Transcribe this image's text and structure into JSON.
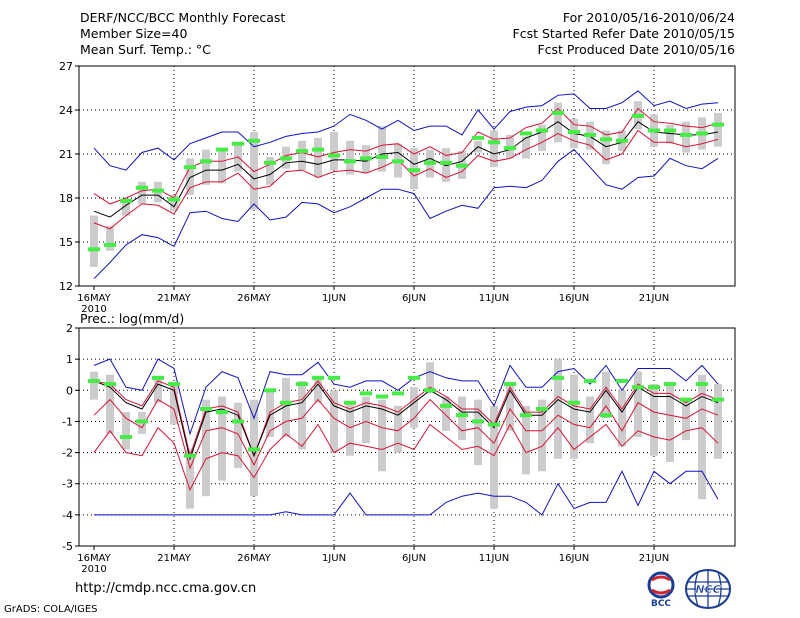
{
  "header": {
    "title": "DERF/NCC/BCC Monthly Forecast",
    "member_size": "Member Size=40",
    "variable1": "Mean Surf. Temp.: °C",
    "period": "For 2010/05/16-2010/06/24",
    "refer_date": "Fcst Started Refer Date 2010/05/15",
    "produced_date": "Fcst Produced Date 2010/05/16"
  },
  "footer": {
    "url": "http://cmdp.ncc.cma.gov.cn",
    "grads": "GrADS: COLA/IGES"
  },
  "logos": [
    {
      "name": "bcc-logo",
      "label": "BCC"
    },
    {
      "name": "ncc-logo",
      "label": "NCC"
    }
  ],
  "colors": {
    "green": "#44ee44",
    "black": "#000000",
    "red": "#dd1133",
    "blue": "#1111cc",
    "box": "#cccccc"
  },
  "chart_data": [
    {
      "type": "line",
      "title": "Mean Surf. Temp.: °C",
      "ylabel": "°C",
      "ylim": [
        12,
        27
      ],
      "yticks": [
        12,
        15,
        18,
        21,
        24,
        27
      ],
      "xtick_labels": [
        "16MAY",
        "21MAY",
        "26MAY",
        "1JUN",
        "6JUN",
        "11JUN",
        "16JUN",
        "21JUN"
      ],
      "year_label": "2010",
      "days": 40,
      "series": [
        {
          "name": "max",
          "color": "blue",
          "values": [
            21.4,
            20.2,
            19.9,
            21.1,
            21.4,
            20.6,
            21.7,
            22.1,
            22.5,
            22.5,
            21.5,
            21.8,
            22.2,
            22.4,
            22.5,
            22.9,
            23.7,
            23.3,
            22.7,
            23.3,
            22.6,
            22.9,
            22.9,
            22.3,
            24.0,
            22.7,
            23.9,
            24.2,
            24.3,
            25.0,
            25.1,
            24.1,
            24.1,
            24.5,
            25.3,
            24.3,
            24.6,
            24.1,
            24.4,
            24.5
          ]
        },
        {
          "name": "upper",
          "color": "red",
          "values": [
            18.3,
            17.6,
            18.0,
            18.5,
            18.6,
            18.0,
            20.1,
            20.5,
            20.5,
            20.8,
            19.8,
            20.3,
            20.9,
            21.1,
            20.8,
            21.1,
            21.3,
            21.2,
            21.6,
            21.7,
            21.0,
            21.5,
            20.9,
            21.1,
            22.5,
            22.0,
            22.1,
            22.8,
            23.1,
            24.1,
            23.0,
            22.9,
            22.3,
            22.5,
            24.1,
            23.2,
            23.1,
            22.9,
            22.8,
            23.1
          ]
        },
        {
          "name": "mean",
          "color": "black",
          "values": [
            17.1,
            16.7,
            17.5,
            18.2,
            18.2,
            17.4,
            19.4,
            19.9,
            19.9,
            20.3,
            19.3,
            19.6,
            20.4,
            20.5,
            20.3,
            20.6,
            20.6,
            20.5,
            21.0,
            21.1,
            20.3,
            20.7,
            20.2,
            20.5,
            21.5,
            21.0,
            21.3,
            22.1,
            22.5,
            23.2,
            22.4,
            22.2,
            21.5,
            21.8,
            23.2,
            22.5,
            22.4,
            22.3,
            22.3,
            22.5
          ]
        },
        {
          "name": "lower",
          "color": "red",
          "values": [
            16.3,
            15.9,
            16.8,
            17.6,
            17.5,
            16.9,
            18.7,
            19.1,
            19.1,
            19.7,
            18.6,
            18.8,
            19.8,
            19.9,
            19.4,
            19.8,
            19.9,
            19.7,
            20.1,
            20.6,
            19.5,
            20.0,
            19.4,
            19.8,
            20.9,
            20.5,
            20.7,
            21.3,
            21.8,
            22.4,
            21.9,
            21.6,
            20.6,
            21.0,
            22.6,
            21.8,
            21.8,
            21.5,
            21.7,
            22.0
          ]
        },
        {
          "name": "min",
          "color": "blue",
          "values": [
            12.5,
            13.6,
            14.8,
            15.5,
            15.3,
            14.7,
            17.0,
            17.1,
            16.6,
            16.4,
            17.6,
            16.5,
            16.7,
            17.7,
            17.6,
            17.0,
            17.4,
            18.0,
            18.6,
            18.6,
            18.3,
            16.6,
            17.1,
            17.5,
            17.3,
            18.7,
            18.8,
            18.7,
            19.2,
            20.5,
            21.3,
            20.1,
            18.9,
            18.6,
            19.4,
            19.5,
            20.7,
            20.2,
            20.0,
            20.7
          ]
        },
        {
          "name": "ensemble-box-top",
          "color": "box",
          "values": [
            16.8,
            16.1,
            17.9,
            19.1,
            19.1,
            18.2,
            20.7,
            21.3,
            21.2,
            21.7,
            22.5,
            20.8,
            21.5,
            21.9,
            22.1,
            22.5,
            21.9,
            21.6,
            22.9,
            21.7,
            21.4,
            21.3,
            21.4,
            21.2,
            21.9,
            22.6,
            22.3,
            22.2,
            23.0,
            24.5,
            23.4,
            23.2,
            22.6,
            22.6,
            24.6,
            23.7,
            23.0,
            23.2,
            23.5,
            23.8
          ]
        },
        {
          "name": "ensemble-box-bottom",
          "color": "box",
          "values": [
            13.3,
            14.4,
            16.8,
            17.6,
            17.7,
            17.1,
            18.2,
            18.9,
            19.0,
            19.8,
            17.2,
            18.9,
            20.0,
            19.9,
            19.4,
            19.9,
            19.6,
            19.7,
            19.8,
            19.4,
            18.6,
            19.4,
            19.1,
            19.3,
            21.1,
            20.1,
            20.7,
            20.7,
            21.2,
            21.8,
            21.4,
            21.3,
            20.3,
            21.2,
            22.7,
            21.5,
            21.7,
            21.1,
            21.3,
            21.5
          ]
        },
        {
          "name": "observed",
          "color": "green",
          "values": [
            14.5,
            14.8,
            17.8,
            18.7,
            18.5,
            17.9,
            20.1,
            20.5,
            21.3,
            21.7,
            21.9,
            20.4,
            20.7,
            21.2,
            21.3,
            20.9,
            20.5,
            20.7,
            20.8,
            20.5,
            19.9,
            20.4,
            20.4,
            20.2,
            22.1,
            21.8,
            21.4,
            22.4,
            22.6,
            23.8,
            22.5,
            22.3,
            22.0,
            21.9,
            23.6,
            22.6,
            22.6,
            22.3,
            22.4,
            23.0
          ]
        }
      ]
    },
    {
      "type": "line",
      "title": "Prec.: log(mm/d)",
      "ylabel": "log(mm/d)",
      "ylim": [
        -5,
        2
      ],
      "yticks": [
        -5,
        -4,
        -3,
        -2,
        -1,
        0,
        1,
        2
      ],
      "xtick_labels": [
        "16MAY",
        "21MAY",
        "26MAY",
        "1JUN",
        "6JUN",
        "11JUN",
        "16JUN",
        "21JUN"
      ],
      "year_label": "2010",
      "days": 40,
      "series": [
        {
          "name": "max",
          "color": "blue",
          "values": [
            0.8,
            1.0,
            0.1,
            0.0,
            1.0,
            0.7,
            -1.4,
            0.1,
            0.6,
            0.4,
            -0.9,
            0.6,
            0.5,
            0.5,
            0.9,
            0.2,
            0.1,
            0.3,
            0.3,
            0.0,
            0.4,
            0.6,
            0.4,
            0.3,
            0.3,
            -0.5,
            0.8,
            0.1,
            0.1,
            0.6,
            0.7,
            0.2,
            0.8,
            0.0,
            0.7,
            0.7,
            0.7,
            0.3,
            0.8,
            0.2
          ]
        },
        {
          "name": "upper",
          "color": "red",
          "values": [
            0.3,
            0.2,
            -0.3,
            -0.5,
            0.3,
            0.1,
            -2.1,
            -0.6,
            -0.5,
            -0.7,
            -2.1,
            -0.7,
            -0.4,
            -0.3,
            0.3,
            -0.4,
            -0.6,
            -0.4,
            -0.5,
            -0.7,
            -0.3,
            0.1,
            -0.2,
            -0.6,
            -0.6,
            -1.1,
            0.1,
            -0.7,
            -0.7,
            -0.2,
            -0.5,
            -0.6,
            0.1,
            -0.6,
            0.2,
            -0.1,
            -0.1,
            -0.4,
            -0.1,
            -0.3
          ]
        },
        {
          "name": "mean",
          "color": "black",
          "values": [
            0.3,
            0.1,
            -0.4,
            -0.6,
            0.2,
            0.0,
            -2.2,
            -0.7,
            -0.6,
            -0.8,
            -2.1,
            -0.8,
            -0.5,
            -0.4,
            0.2,
            -0.5,
            -0.7,
            -0.5,
            -0.6,
            -0.8,
            -0.4,
            0.0,
            -0.3,
            -0.7,
            -0.7,
            -1.2,
            0.0,
            -0.8,
            -0.8,
            -0.3,
            -0.6,
            -0.7,
            0.0,
            -0.7,
            0.1,
            -0.2,
            -0.2,
            -0.5,
            -0.2,
            -0.4
          ]
        },
        {
          "name": "lower",
          "color": "red",
          "values": [
            -0.8,
            -0.3,
            -0.9,
            -1.2,
            -0.3,
            -0.6,
            -2.5,
            -1.3,
            -1.2,
            -1.4,
            -2.4,
            -1.3,
            -1.0,
            -0.9,
            -0.3,
            -0.9,
            -1.2,
            -1.0,
            -1.2,
            -1.3,
            -0.9,
            -0.3,
            -0.8,
            -1.3,
            -1.2,
            -1.7,
            -0.6,
            -1.3,
            -1.3,
            -0.8,
            -1.1,
            -1.2,
            -0.5,
            -1.3,
            -0.4,
            -0.7,
            -0.8,
            -0.9,
            -0.6,
            -0.8
          ]
        },
        {
          "name": "lower2",
          "color": "red",
          "values": [
            -2.0,
            -1.3,
            -2.0,
            -2.1,
            -1.2,
            -1.7,
            -3.2,
            -2.2,
            -2.0,
            -2.1,
            -2.8,
            -1.9,
            -1.4,
            -1.8,
            -1.1,
            -2.0,
            -1.7,
            -1.8,
            -1.9,
            -1.7,
            -1.9,
            -1.1,
            -1.5,
            -1.9,
            -1.8,
            -2.1,
            -1.1,
            -2.0,
            -1.8,
            -1.2,
            -1.9,
            -1.5,
            -1.1,
            -1.8,
            -1.3,
            -1.5,
            -1.6,
            -1.3,
            -1.2,
            -1.7
          ]
        },
        {
          "name": "min",
          "color": "blue",
          "values": [
            -4.0,
            -4.0,
            -4.0,
            -4.0,
            -4.0,
            -4.0,
            -4.0,
            -4.0,
            -4.0,
            -4.0,
            -4.0,
            -4.0,
            -3.9,
            -4.0,
            -4.0,
            -4.0,
            -3.3,
            -4.0,
            -4.0,
            -4.0,
            -4.0,
            -4.0,
            -3.6,
            -3.4,
            -3.3,
            -3.4,
            -3.4,
            -3.6,
            -4.0,
            -3.0,
            -3.8,
            -3.6,
            -3.6,
            -2.6,
            -3.7,
            -2.6,
            -3.0,
            -2.6,
            -2.6,
            -3.5
          ]
        },
        {
          "name": "ensemble-box-top",
          "color": "box",
          "values": [
            0.6,
            0.5,
            -0.7,
            -0.7,
            0.4,
            0.2,
            -1.9,
            -0.3,
            -0.2,
            -0.4,
            -0.3,
            0.0,
            0.4,
            0.3,
            0.4,
            0.0,
            -0.4,
            -0.2,
            -0.3,
            -0.5,
            0.1,
            0.9,
            -0.2,
            -0.2,
            -0.3,
            -0.5,
            0.2,
            -0.5,
            -0.3,
            1.0,
            0.5,
            -0.2,
            0.6,
            0.0,
            0.6,
            0.2,
            0.2,
            -0.3,
            0.5,
            0.2
          ]
        },
        {
          "name": "ensemble-box-bottom",
          "color": "box",
          "values": [
            -0.3,
            -1.4,
            -1.9,
            -1.4,
            -0.4,
            -1.1,
            -3.8,
            -3.4,
            -2.9,
            -2.5,
            -3.4,
            -1.5,
            -1.5,
            -1.9,
            -0.4,
            -2.0,
            -2.1,
            -1.7,
            -2.6,
            -2.0,
            -1.2,
            -0.1,
            -1.3,
            -1.6,
            -2.4,
            -3.8,
            -1.3,
            -2.7,
            -2.6,
            -2.2,
            -2.2,
            -1.7,
            -0.9,
            -1.8,
            -1.5,
            -2.1,
            -2.3,
            -1.6,
            -3.5,
            -2.2
          ]
        },
        {
          "name": "observed",
          "color": "green",
          "values": [
            0.3,
            0.2,
            -1.5,
            -1.0,
            0.4,
            0.2,
            -2.1,
            -0.6,
            -0.7,
            -1.0,
            -1.9,
            0.0,
            -0.4,
            0.2,
            0.4,
            0.4,
            -0.4,
            -0.1,
            -0.2,
            -0.1,
            0.4,
            0.0,
            -0.5,
            -0.8,
            -1.0,
            -1.1,
            0.2,
            -0.8,
            -0.6,
            0.4,
            -0.4,
            0.3,
            -0.8,
            0.3,
            0.1,
            0.1,
            0.2,
            -0.3,
            0.2,
            -0.3
          ]
        }
      ]
    }
  ]
}
